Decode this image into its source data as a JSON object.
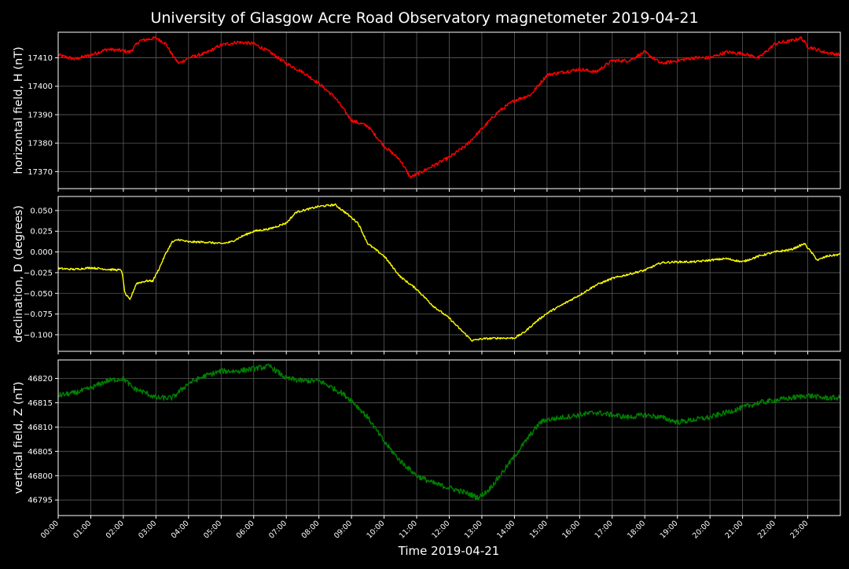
{
  "figure": {
    "title": "University of Glasgow Acre Road Observatory magnetometer 2019-04-21",
    "xlabel": "Time 2019-04-21",
    "colors": {
      "background": "#000000",
      "grid": "#5a5a5a",
      "text": "#ffffff"
    }
  },
  "chart_data": [
    {
      "type": "line",
      "ylabel": "horizontal field, H (nT)",
      "xlim": [
        0,
        24
      ],
      "ylim": [
        17364,
        17419
      ],
      "yticks": [
        17370,
        17380,
        17390,
        17400,
        17410
      ],
      "x_tick_labels": [
        "00:00",
        "01:00",
        "02:00",
        "03:00",
        "04:00",
        "05:00",
        "06:00",
        "07:00",
        "08:00",
        "09:00",
        "10:00",
        "11:00",
        "12:00",
        "13:00",
        "14:00",
        "15:00",
        "16:00",
        "17:00",
        "18:00",
        "19:00",
        "20:00",
        "21:00",
        "22:00",
        "23:00"
      ],
      "grid": true,
      "series": [
        {
          "color": "#ff0000",
          "noise": 0.6,
          "points": [
            [
              0,
              17411
            ],
            [
              0.5,
              17409.5
            ],
            [
              1,
              17411
            ],
            [
              1.5,
              17413
            ],
            [
              2,
              17412.5
            ],
            [
              2.2,
              17412
            ],
            [
              2.5,
              17416
            ],
            [
              3,
              17417
            ],
            [
              3.3,
              17415
            ],
            [
              3.5,
              17411
            ],
            [
              3.7,
              17408
            ],
            [
              4,
              17410
            ],
            [
              4.5,
              17411.5
            ],
            [
              5,
              17414.5
            ],
            [
              5.5,
              17415.5
            ],
            [
              6,
              17415
            ],
            [
              6.5,
              17412
            ],
            [
              7,
              17408
            ],
            [
              7.5,
              17405
            ],
            [
              8,
              17401
            ],
            [
              8.5,
              17396
            ],
            [
              9,
              17388
            ],
            [
              9.5,
              17386
            ],
            [
              10,
              17379
            ],
            [
              10.5,
              17374
            ],
            [
              10.8,
              17368
            ],
            [
              11,
              17369
            ],
            [
              11.5,
              17372
            ],
            [
              12,
              17375
            ],
            [
              12.5,
              17379
            ],
            [
              13,
              17385
            ],
            [
              13.5,
              17391
            ],
            [
              14,
              17395
            ],
            [
              14.5,
              17397
            ],
            [
              15,
              17404
            ],
            [
              15.5,
              17405
            ],
            [
              16,
              17406
            ],
            [
              16.5,
              17405
            ],
            [
              17,
              17409
            ],
            [
              17.5,
              17409
            ],
            [
              18,
              17412
            ],
            [
              18.5,
              17408
            ],
            [
              19,
              17409
            ],
            [
              19.5,
              17410
            ],
            [
              20,
              17410
            ],
            [
              20.5,
              17412
            ],
            [
              21,
              17411.5
            ],
            [
              21.5,
              17410
            ],
            [
              22,
              17415
            ],
            [
              22.5,
              17416
            ],
            [
              22.8,
              17417
            ],
            [
              23,
              17414
            ],
            [
              23.5,
              17412
            ],
            [
              24,
              17411
            ]
          ]
        }
      ]
    },
    {
      "type": "line",
      "ylabel": "declination, D (degrees)",
      "xlim": [
        0,
        24
      ],
      "ylim": [
        -0.12,
        0.067
      ],
      "yticks": [
        -0.1,
        -0.075,
        -0.05,
        -0.025,
        0.0,
        0.025,
        0.05
      ],
      "ytick_labels": [
        "−0.100",
        "−0.075",
        "−0.050",
        "−0.025",
        "0.000",
        "0.025",
        "0.050"
      ],
      "x_tick_labels": [
        "00:00",
        "01:00",
        "02:00",
        "03:00",
        "04:00",
        "05:00",
        "06:00",
        "07:00",
        "08:00",
        "09:00",
        "10:00",
        "11:00",
        "12:00",
        "13:00",
        "14:00",
        "15:00",
        "16:00",
        "17:00",
        "18:00",
        "19:00",
        "20:00",
        "21:00",
        "22:00",
        "23:00"
      ],
      "grid": true,
      "series": [
        {
          "color": "#ffff00",
          "noise": 0.0012,
          "points": [
            [
              0,
              -0.02
            ],
            [
              0.5,
              -0.021
            ],
            [
              1,
              -0.019
            ],
            [
              1.5,
              -0.021
            ],
            [
              1.95,
              -0.022
            ],
            [
              2.05,
              -0.05
            ],
            [
              2.2,
              -0.058
            ],
            [
              2.4,
              -0.038
            ],
            [
              2.7,
              -0.035
            ],
            [
              2.9,
              -0.035
            ],
            [
              3.1,
              -0.02
            ],
            [
              3.3,
              -0.002
            ],
            [
              3.5,
              0.012
            ],
            [
              3.7,
              0.015
            ],
            [
              4,
              0.012
            ],
            [
              4.5,
              0.012
            ],
            [
              5,
              0.01
            ],
            [
              5.3,
              0.012
            ],
            [
              5.7,
              0.02
            ],
            [
              6,
              0.025
            ],
            [
              6.5,
              0.028
            ],
            [
              7,
              0.035
            ],
            [
              7.3,
              0.048
            ],
            [
              7.7,
              0.052
            ],
            [
              8,
              0.055
            ],
            [
              8.5,
              0.057
            ],
            [
              8.8,
              0.048
            ],
            [
              9.2,
              0.035
            ],
            [
              9.5,
              0.01
            ],
            [
              10,
              -0.005
            ],
            [
              10.5,
              -0.03
            ],
            [
              11,
              -0.045
            ],
            [
              11.5,
              -0.065
            ],
            [
              12,
              -0.08
            ],
            [
              12.3,
              -0.092
            ],
            [
              12.7,
              -0.107
            ],
            [
              13,
              -0.105
            ],
            [
              13.5,
              -0.104
            ],
            [
              14,
              -0.104
            ],
            [
              14.3,
              -0.097
            ],
            [
              14.7,
              -0.083
            ],
            [
              15,
              -0.074
            ],
            [
              15.5,
              -0.063
            ],
            [
              16,
              -0.052
            ],
            [
              16.5,
              -0.04
            ],
            [
              17,
              -0.032
            ],
            [
              17.5,
              -0.027
            ],
            [
              18,
              -0.022
            ],
            [
              18.5,
              -0.013
            ],
            [
              19,
              -0.012
            ],
            [
              19.5,
              -0.012
            ],
            [
              20,
              -0.01
            ],
            [
              20.5,
              -0.008
            ],
            [
              21,
              -0.012
            ],
            [
              21.5,
              -0.005
            ],
            [
              22,
              0.0
            ],
            [
              22.5,
              0.003
            ],
            [
              22.9,
              0.01
            ],
            [
              23.1,
              0.0
            ],
            [
              23.3,
              -0.01
            ],
            [
              23.6,
              -0.005
            ],
            [
              24,
              -0.003
            ]
          ]
        }
      ]
    },
    {
      "type": "line",
      "ylabel": "vertical field, Z (nT)",
      "xlim": [
        0,
        24
      ],
      "ylim": [
        46791.8,
        46823.8
      ],
      "yticks": [
        46795,
        46800,
        46805,
        46810,
        46815,
        46820
      ],
      "x_tick_labels": [
        "00:00",
        "01:00",
        "02:00",
        "03:00",
        "04:00",
        "05:00",
        "06:00",
        "07:00",
        "08:00",
        "09:00",
        "10:00",
        "11:00",
        "12:00",
        "13:00",
        "14:00",
        "15:00",
        "16:00",
        "17:00",
        "18:00",
        "19:00",
        "20:00",
        "21:00",
        "22:00",
        "23:00"
      ],
      "grid": true,
      "series": [
        {
          "color": "#008000",
          "noise": 0.55,
          "points": [
            [
              0,
              46816.5
            ],
            [
              0.5,
              46817
            ],
            [
              1,
              46818
            ],
            [
              1.5,
              46819.5
            ],
            [
              2,
              46820
            ],
            [
              2.3,
              46818
            ],
            [
              2.7,
              46817
            ],
            [
              3,
              46816
            ],
            [
              3.5,
              46816
            ],
            [
              4,
              46819
            ],
            [
              4.5,
              46820.5
            ],
            [
              5,
              46821.5
            ],
            [
              5.5,
              46821.5
            ],
            [
              6,
              46822
            ],
            [
              6.5,
              46822.5
            ],
            [
              7,
              46820
            ],
            [
              7.5,
              46819.5
            ],
            [
              8,
              46819.5
            ],
            [
              8.3,
              46818.5
            ],
            [
              8.7,
              46817
            ],
            [
              9,
              46815.5
            ],
            [
              9.5,
              46812
            ],
            [
              10,
              46807
            ],
            [
              10.5,
              46803
            ],
            [
              11,
              46800
            ],
            [
              11.5,
              46798.5
            ],
            [
              12,
              46797.5
            ],
            [
              12.5,
              46796.5
            ],
            [
              12.9,
              46795.5
            ],
            [
              13.2,
              46797
            ],
            [
              13.5,
              46799.5
            ],
            [
              14,
              46804
            ],
            [
              14.5,
              46808.5
            ],
            [
              14.8,
              46811
            ],
            [
              15,
              46811.5
            ],
            [
              15.5,
              46812
            ],
            [
              16,
              46812.5
            ],
            [
              16.5,
              46813
            ],
            [
              17,
              46812.5
            ],
            [
              17.5,
              46812
            ],
            [
              18,
              46812.5
            ],
            [
              18.5,
              46812
            ],
            [
              19,
              46811
            ],
            [
              19.5,
              46811.5
            ],
            [
              20,
              46812
            ],
            [
              20.5,
              46813
            ],
            [
              21,
              46814
            ],
            [
              21.5,
              46815
            ],
            [
              22,
              46815.5
            ],
            [
              22.5,
              46816
            ],
            [
              23,
              46816.5
            ],
            [
              23.5,
              46816
            ],
            [
              24,
              46816
            ]
          ]
        }
      ]
    }
  ]
}
